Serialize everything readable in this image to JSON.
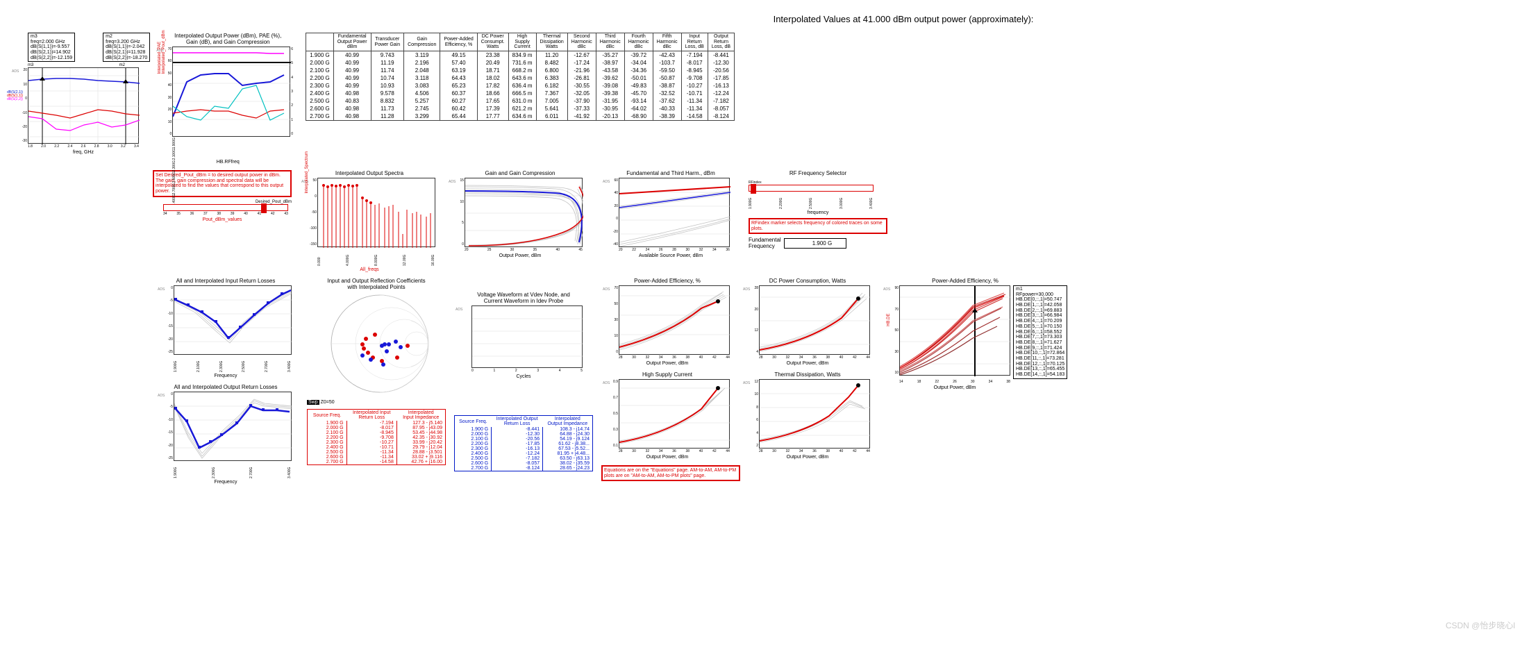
{
  "title": "Interpolated Values at 41.000 dBm output power (approximately):",
  "markers": {
    "m3": [
      "m3",
      "freq=2.000 GHz",
      "dB(S(1,1))=-9.557",
      "dB(S(2,1))=14.902",
      "dB(S(2,2))=-12.159"
    ],
    "m2": [
      "m2",
      "freq=3.200 GHz",
      "dB(S(1,1))=-2.042",
      "dB(S(2,1))=11.928",
      "dB(S(2,2))=-18.270"
    ],
    "m1": [
      "m1",
      "RFpower=30.000",
      "HB.DE[0,::,1]=50.747",
      "HB.DE[1,::,1]=42.058",
      "HB.DE[2,::,1]=69.883",
      "HB.DE[3,::,1]=66.984",
      "HB.DE[4,::,1]=70.209",
      "HB.DE[5,::,1]=70.150",
      "HB.DE[6,::,1]=58.552",
      "HB.DE[7,::,1]=73.303",
      "HB.DE[8,::,1]=71.627",
      "HB.DE[9,::,1]=71.424",
      "HB.DE[10,::,1]=72.864",
      "HB.DE[11,::,1]=73.281",
      "HB.DE[12,::,1]=70.125",
      "HB.DE[13,::,1]=65.455",
      "HB.DE[14,::,1]=54.183"
    ]
  },
  "big_table": {
    "headers": [
      [
        "",
        "Fundamental",
        "Transducer",
        "",
        "Power-Added",
        "DC Power",
        "High",
        "Thermal",
        "Second",
        "Third",
        "Fourth",
        "Fifth",
        "Input",
        "Output"
      ],
      [
        "",
        "Output Power",
        "Power Gain",
        "Gain",
        "Efficiency, %",
        "Consumpt.",
        "Supply",
        "Dissipation",
        "Harmonic",
        "Harmonic",
        "Harmonic",
        "Harmonic",
        "Return",
        "Return"
      ],
      [
        "",
        "dBm",
        "",
        "Compression",
        "",
        "Watts",
        "Current",
        "Watts",
        "dBc",
        "dBc",
        "dBc",
        "dBc",
        "Loss, dB",
        "Loss, dB"
      ]
    ],
    "rows": [
      [
        "1.900 G",
        "40.99",
        "9.743",
        "3.119",
        "49.15",
        "23.38",
        "834.9 m",
        "11.20",
        "-12.67",
        "-35.27",
        "-39.72",
        "-42.43",
        "-7.194",
        "-8.441"
      ],
      [
        "2.000 G",
        "40.99",
        "11.19",
        "2.196",
        "57.40",
        "20.49",
        "731.6 m",
        "8.482",
        "-17.24",
        "-38.97",
        "-34.04",
        "-103.7",
        "-8.017",
        "-12.30"
      ],
      [
        "2.100 G",
        "40.99",
        "11.74",
        "2.048",
        "63.19",
        "18.71",
        "668.2 m",
        "6.800",
        "-21.96",
        "-43.58",
        "-34.36",
        "-59.50",
        "-8.945",
        "-20.56"
      ],
      [
        "2.200 G",
        "40.99",
        "10.74",
        "3.118",
        "64.43",
        "18.02",
        "643.6 m",
        "6.383",
        "-26.81",
        "-39.62",
        "-50.01",
        "-50.87",
        "-9.708",
        "-17.85"
      ],
      [
        "2.300 G",
        "40.99",
        "10.93",
        "3.083",
        "65.23",
        "17.82",
        "636.4 m",
        "6.182",
        "-30.55",
        "-39.08",
        "-49.83",
        "-38.87",
        "-10.27",
        "-16.13"
      ],
      [
        "2.400 G",
        "40.98",
        "9.578",
        "4.506",
        "60.37",
        "18.66",
        "666.5 m",
        "7.367",
        "-32.05",
        "-39.38",
        "-45.70",
        "-32.52",
        "-10.71",
        "-12.24"
      ],
      [
        "2.500 G",
        "40.83",
        "8.832",
        "5.257",
        "60.27",
        "17.65",
        "631.0 m",
        "7.005",
        "-37.90",
        "-31.95",
        "-93.14",
        "-37.62",
        "-11.34",
        "-7.182"
      ],
      [
        "2.600 G",
        "40.98",
        "11.73",
        "2.745",
        "60.42",
        "17.39",
        "621.2 m",
        "5.641",
        "-37.33",
        "-30.95",
        "-64.02",
        "-40.33",
        "-11.34",
        "-8.057"
      ],
      [
        "2.700 G",
        "40.98",
        "11.28",
        "3.299",
        "65.44",
        "17.77",
        "634.6 m",
        "6.011",
        "-41.92",
        "-20.13",
        "-68.90",
        "-38.39",
        "-14.58",
        "-8.124"
      ]
    ]
  },
  "charts": {
    "sparams": {
      "title": "",
      "xlabel": "freq, GHz",
      "ylim": [
        -30,
        20
      ],
      "xlim": [
        1.8,
        3.4
      ],
      "m3x": 2.0,
      "m2x": 3.2
    },
    "interp_pout": {
      "title": "Interpolated Output Power (dBm), PAE (%),\nGain (dB), and Gain Compression",
      "xlabel": "HB.RFfreq"
    },
    "spectra": {
      "title": "Interpolated Output Spectra",
      "xlabel": "All_freqs",
      "ylim": [
        -150,
        50
      ]
    },
    "gain_comp": {
      "title": "Gain and Gain Compression",
      "xlabel": "Output Power, dBm",
      "ylim": [
        0,
        15
      ]
    },
    "fund_third": {
      "title": "Fundamental and Third Harm., dBm",
      "xlabel": "Available Source Power, dBm",
      "ylim": [
        -40,
        60
      ]
    },
    "rf_sel": {
      "title": "RF Frequency Selector",
      "xlabel": "frequency"
    },
    "irl": {
      "title": "All and Interpolated Input Return Losses",
      "xlabel": "Frequency",
      "ylim": [
        -25,
        0
      ]
    },
    "orl": {
      "title": "All and Interpolated Output Return Losses",
      "xlabel": "Frequency",
      "ylim": [
        -25,
        0
      ]
    },
    "smith": {
      "title": "Input and Output Reflection Coefficients\nwith Interpolated Points"
    },
    "voltage": {
      "title": "Voltage Waveform at Vdev Node, and\nCurrent Waveform in Idev Probe",
      "xlabel": "Cycles"
    },
    "pae_p": {
      "title": "Power-Added Efficiency, %",
      "xlabel": "Output Power, dBm",
      "ylim": [
        0,
        70
      ]
    },
    "dc_p": {
      "title": "DC Power Consumption, Watts",
      "xlabel": "Output Power, dBm",
      "ylim": [
        4,
        28
      ]
    },
    "hsc": {
      "title": "High Supply Current",
      "xlabel": "Output Power, dBm",
      "ylim": [
        0.1,
        0.9
      ]
    },
    "thermal": {
      "title": "Thermal Dissipation, Watts",
      "xlabel": "Output Power, dBm",
      "ylim": [
        2,
        12
      ]
    },
    "pae_big": {
      "title": "Power-Added Efficiency, %",
      "xlabel": "Output Power, dBm",
      "ylim": [
        10,
        90
      ]
    }
  },
  "red_info_box": "Set Desired_Pout_dBm = to desired output power in dBm.  The gain, gain compression and spectral data will be interpolated to find the values that correspond to this output power.",
  "pout_slider": {
    "label": "Desired_Pout_dBm",
    "xlabel": "Pout_dBm_values",
    "min": 34,
    "max": 43,
    "value": 41
  },
  "rf_sel_note": "RFindex marker selects frequency of colored traces on some plots.",
  "fund_freq": {
    "label": "Fundamental\nFrequency",
    "value": "1.900 G"
  },
  "eq_note": "Equations are on the \"Equations\" page. AM-to-AM, AM-to-PM plots are on \"AM-to-AM, AM-to-PM plots\" page.",
  "z0": "Z0=50",
  "in_table": {
    "headers": [
      "Source Freq.",
      "Interpolated Input\nReturn Loss",
      "Interpolated\nInput Impedance"
    ],
    "rows": [
      [
        "1.900 G",
        "-7.194",
        "127.3 - j5.140"
      ],
      [
        "2.000 G",
        "-8.017",
        "87.95 - j43.09"
      ],
      [
        "2.100 G",
        "-8.945",
        "53.45 - j44.98"
      ],
      [
        "2.200 G",
        "-9.708",
        "42.35 - j30.92"
      ],
      [
        "2.300 G",
        "-10.27",
        "33.99 - j20.42"
      ],
      [
        "2.400 G",
        "-10.71",
        "29.79 - j12.04"
      ],
      [
        "2.500 G",
        "-11.34",
        "28.88 - j3.501"
      ],
      [
        "2.600 G",
        "-11.34",
        "33.02 + j9.116"
      ],
      [
        "2.700 G",
        "-14.58",
        "42.76 + j16.00"
      ]
    ]
  },
  "out_table": {
    "headers": [
      "Source Freq.",
      "Interpolated Output\nReturn Loss",
      "Interpolated\nOutput Impedance"
    ],
    "rows": [
      [
        "1.900 G",
        "-8.441",
        "108.3 - j14.74"
      ],
      [
        "2.000 G",
        "-12.30",
        "64.88 - j24.30"
      ],
      [
        "2.100 G",
        "-20.56",
        "54.19 - j9.124"
      ],
      [
        "2.200 G",
        "-17.85",
        "61.62 - j8.38..."
      ],
      [
        "2.300 G",
        "-16.13",
        "67.53 - j5.52..."
      ],
      [
        "2.400 G",
        "-12.24",
        "81.95 + j4.48..."
      ],
      [
        "2.500 G",
        "-7.182",
        "63.50 - j63.13"
      ],
      [
        "2.600 G",
        "-8.057",
        "38.02 - j35.59"
      ],
      [
        "2.700 G",
        "-8.124",
        "28.65 - j24.23"
      ]
    ]
  },
  "watermark": "CSDN @怡步晓心l",
  "colors": {
    "red": "#dc0000",
    "blue": "#1818d8",
    "magenta": "#ff00ff",
    "grey": "#c0c0c0",
    "cyan": "#00c0c0"
  }
}
